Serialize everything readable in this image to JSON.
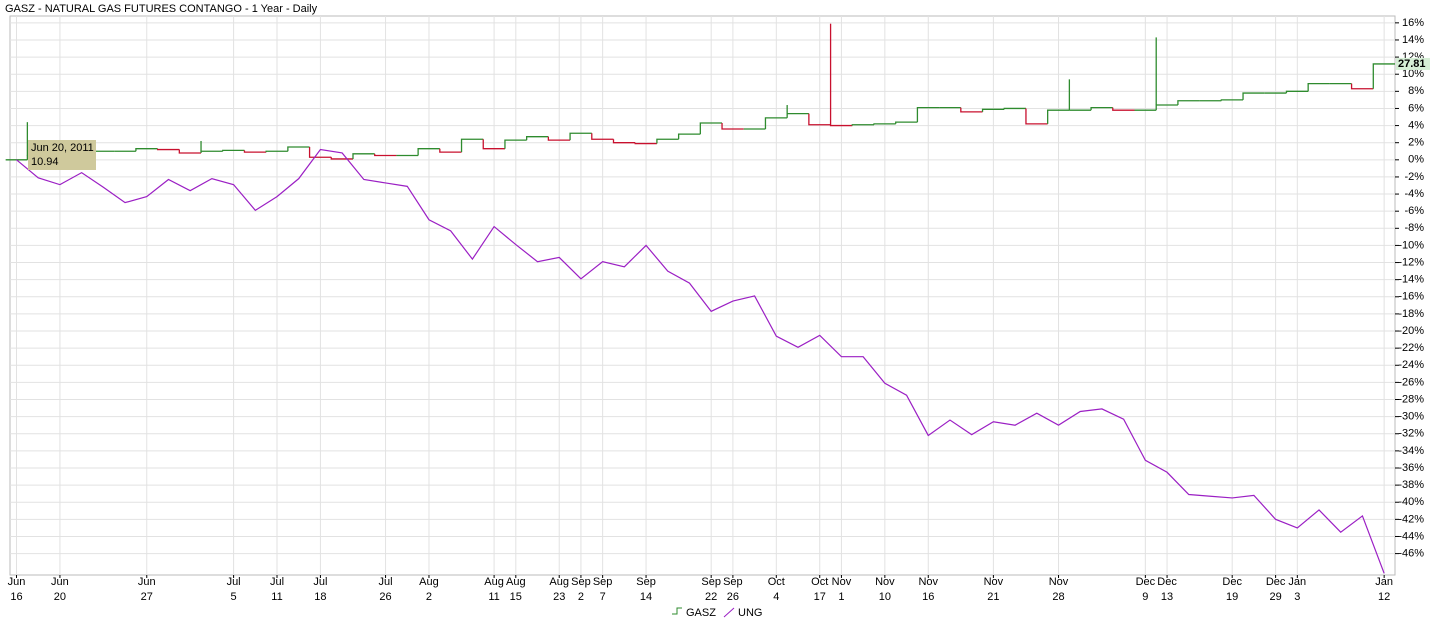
{
  "chart_data": {
    "type": "line",
    "title": "GASZ - NATURAL GAS FUTURES CONTANGO - 1 Year - Daily",
    "xlim": [
      -0.3,
      63.5
    ],
    "ylim": [
      -48.5,
      16.8
    ],
    "xticks": [
      {
        "value": 0,
        "label": "Jun",
        "sublabel": "16"
      },
      {
        "value": 2,
        "label": "Jun",
        "sublabel": "20"
      },
      {
        "value": 6,
        "label": "Jun",
        "sublabel": "27"
      },
      {
        "value": 10,
        "label": "Jul",
        "sublabel": "5"
      },
      {
        "value": 12,
        "label": "Jul",
        "sublabel": "11"
      },
      {
        "value": 14,
        "label": "Jul",
        "sublabel": "18"
      },
      {
        "value": 17,
        "label": "Jul",
        "sublabel": "26"
      },
      {
        "value": 19,
        "label": "Aug",
        "sublabel": "2"
      },
      {
        "value": 22,
        "label": "Aug",
        "sublabel": "11"
      },
      {
        "value": 23,
        "label": "Aug",
        "sublabel": "15"
      },
      {
        "value": 25,
        "label": "Aug",
        "sublabel": "23"
      },
      {
        "value": 26,
        "label": "Sep",
        "sublabel": "2"
      },
      {
        "value": 27,
        "label": "Sep",
        "sublabel": "7"
      },
      {
        "value": 29,
        "label": "Sep",
        "sublabel": "14"
      },
      {
        "value": 32,
        "label": "Sep",
        "sublabel": "22"
      },
      {
        "value": 33,
        "label": "Sep",
        "sublabel": "26"
      },
      {
        "value": 35,
        "label": "Oct",
        "sublabel": "4"
      },
      {
        "value": 37,
        "label": "Oct",
        "sublabel": "17"
      },
      {
        "value": 38,
        "label": "Nov",
        "sublabel": "1"
      },
      {
        "value": 40,
        "label": "Nov",
        "sublabel": "10"
      },
      {
        "value": 42,
        "label": "Nov",
        "sublabel": "16"
      },
      {
        "value": 45,
        "label": "Nov",
        "sublabel": "21"
      },
      {
        "value": 48,
        "label": "Nov",
        "sublabel": "28"
      },
      {
        "value": 52,
        "label": "Dec",
        "sublabel": "9"
      },
      {
        "value": 53,
        "label": "Dec",
        "sublabel": "13"
      },
      {
        "value": 56,
        "label": "Dec",
        "sublabel": "19"
      },
      {
        "value": 58,
        "label": "Dec",
        "sublabel": "29"
      },
      {
        "value": 59,
        "label": "Jan",
        "sublabel": "3"
      },
      {
        "value": 63,
        "label": "Jan",
        "sublabel": "12"
      }
    ],
    "yticks": [
      {
        "value": 16,
        "label": "16%"
      },
      {
        "value": 14,
        "label": "14%"
      },
      {
        "value": 12,
        "label": "12%"
      },
      {
        "value": 10,
        "label": "10%"
      },
      {
        "value": 8,
        "label": "8%"
      },
      {
        "value": 6,
        "label": "6%"
      },
      {
        "value": 4,
        "label": "4%"
      },
      {
        "value": 2,
        "label": "2%"
      },
      {
        "value": 0,
        "label": "0%"
      },
      {
        "value": -2,
        "label": "-2%"
      },
      {
        "value": -4,
        "label": "-4%"
      },
      {
        "value": -6,
        "label": "-6%"
      },
      {
        "value": -8,
        "label": "-8%"
      },
      {
        "value": -10,
        "label": "-10%"
      },
      {
        "value": -12,
        "label": "-12%"
      },
      {
        "value": -14,
        "label": "-14%"
      },
      {
        "value": -16,
        "label": "-16%"
      },
      {
        "value": -18,
        "label": "-18%"
      },
      {
        "value": -20,
        "label": "-20%"
      },
      {
        "value": -22,
        "label": "-22%"
      },
      {
        "value": -24,
        "label": "-24%"
      },
      {
        "value": -26,
        "label": "-26%"
      },
      {
        "value": -28,
        "label": "-28%"
      },
      {
        "value": -30,
        "label": "-30%"
      },
      {
        "value": -32,
        "label": "-32%"
      },
      {
        "value": -34,
        "label": "-34%"
      },
      {
        "value": -36,
        "label": "-36%"
      },
      {
        "value": -38,
        "label": "-38%"
      },
      {
        "value": -40,
        "label": "-40%"
      },
      {
        "value": -42,
        "label": "-42%"
      },
      {
        "value": -44,
        "label": "-44%"
      },
      {
        "value": -46,
        "label": "-46%"
      }
    ],
    "grid": true,
    "series": [
      {
        "name": "GASZ",
        "style": "step",
        "up_color": "#2e8b2e",
        "down_color": "#c8102e",
        "values": [
          0,
          0.5,
          0.6,
          0.9,
          1.0,
          1.0,
          1.3,
          1.2,
          0.8,
          1.0,
          1.1,
          0.9,
          1.0,
          1.5,
          0.3,
          0.1,
          0.7,
          0.5,
          0.5,
          1.3,
          0.9,
          2.4,
          1.3,
          2.3,
          2.7,
          2.3,
          3.1,
          2.4,
          2.0,
          1.9,
          2.4,
          3.0,
          4.3,
          3.6,
          3.6,
          4.9,
          5.4,
          4.1,
          4.0,
          4.1,
          4.2,
          4.4,
          6.1,
          6.1,
          5.6,
          5.9,
          6.0,
          4.2,
          5.8,
          5.8,
          6.1,
          5.8,
          5.8,
          6.4,
          6.9,
          6.9,
          7.0,
          7.8,
          7.8,
          8.0,
          8.9,
          8.9,
          8.3,
          11.2
        ],
        "highs": [
          null,
          4.4,
          null,
          null,
          null,
          null,
          null,
          null,
          null,
          2.2,
          null,
          null,
          null,
          null,
          null,
          null,
          null,
          null,
          null,
          null,
          null,
          null,
          null,
          null,
          null,
          null,
          null,
          null,
          null,
          null,
          null,
          null,
          null,
          null,
          null,
          null,
          6.4,
          null,
          15.9,
          null,
          null,
          null,
          null,
          null,
          null,
          null,
          null,
          null,
          null,
          9.4,
          null,
          null,
          null,
          14.3,
          null,
          null,
          null,
          null,
          null,
          null,
          null,
          null,
          null,
          null
        ],
        "last_value_label": "27.81",
        "legend_color": "#2e8b2e"
      },
      {
        "name": "UNG",
        "style": "line",
        "color": "#9b1fc4",
        "values": [
          0,
          -2.1,
          -2.9,
          -1.5,
          -3.2,
          -5.0,
          -4.3,
          -2.3,
          -3.6,
          -2.2,
          -2.9,
          -5.9,
          -4.3,
          -2.2,
          1.2,
          0.8,
          -2.3,
          -2.7,
          -3.1,
          -7.0,
          -8.3,
          -11.6,
          -7.8,
          -9.9,
          -11.9,
          -11.4,
          -13.9,
          -11.9,
          -12.5,
          -10.0,
          -13.0,
          -14.4,
          -17.7,
          -16.5,
          -15.9,
          -20.6,
          -21.9,
          -20.5,
          -23.0,
          -23.0,
          -26.1,
          -27.5,
          -32.2,
          -30.4,
          -32.1,
          -30.6,
          -31.0,
          -29.6,
          -31.0,
          -29.4,
          -29.1,
          -30.3,
          -35.1,
          -36.5,
          -39.1,
          -39.3,
          -39.5,
          -39.2,
          -42.0,
          -43.0,
          -40.9,
          -43.5,
          -41.6,
          -48.3
        ]
      }
    ],
    "tooltip": {
      "date": "Jun 20, 2011",
      "value": 10.94
    }
  }
}
